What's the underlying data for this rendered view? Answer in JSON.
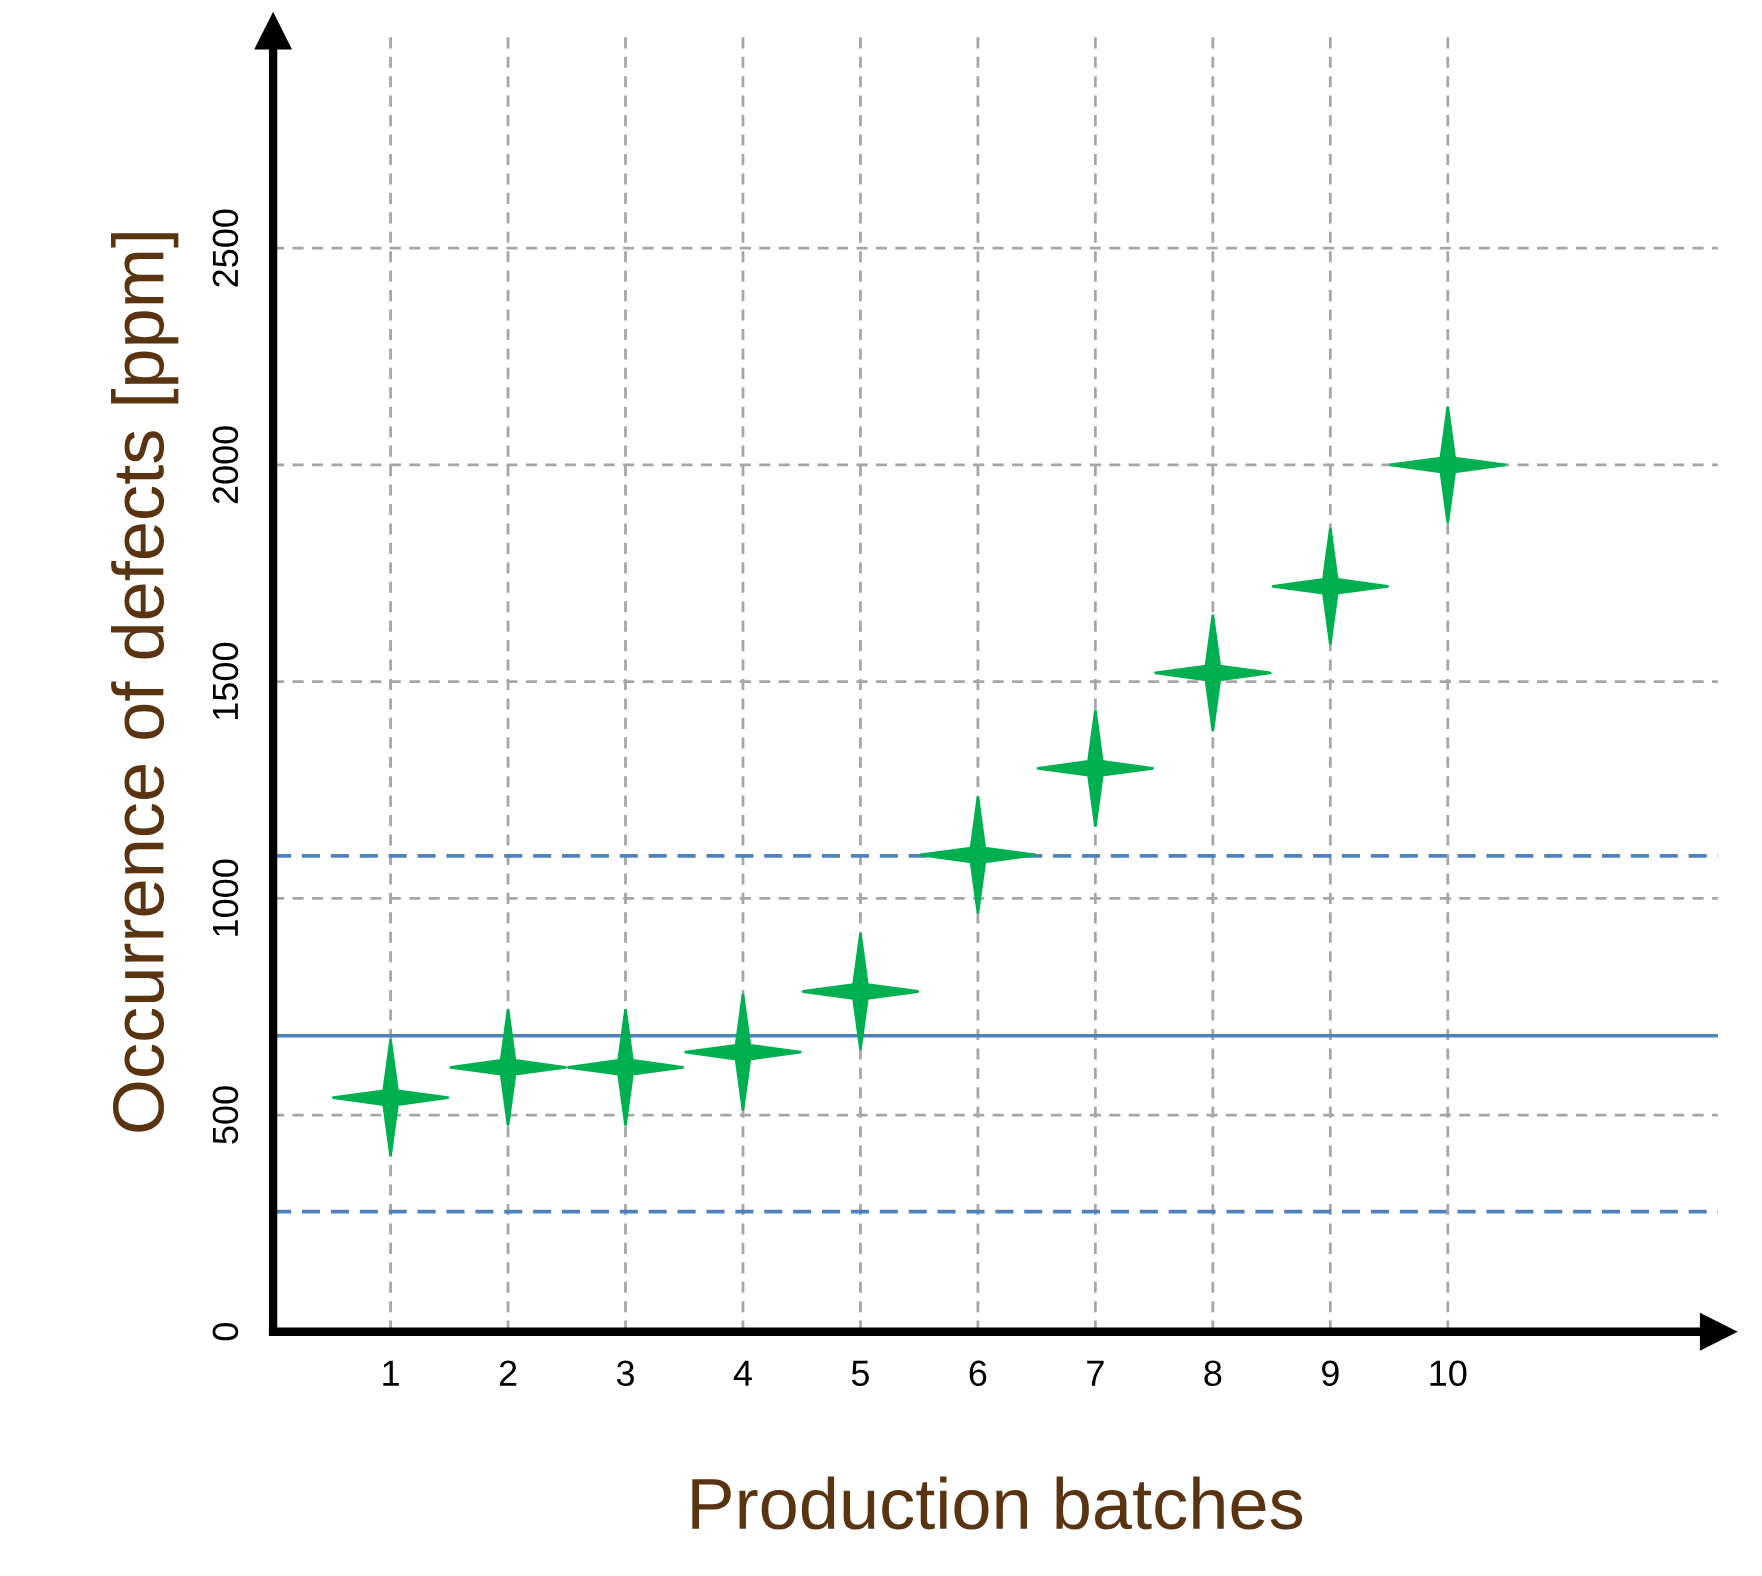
{
  "chart_data": {
    "type": "scatter",
    "xlabel": "Production batches",
    "ylabel": "Occurrence of defects [ppm]",
    "categories": [
      "1",
      "2",
      "3",
      "4",
      "5",
      "6",
      "7",
      "8",
      "9",
      "10"
    ],
    "series": [
      {
        "color": "#00b050",
        "values": [
          540,
          610,
          610,
          645,
          785,
          1100,
          1300,
          1520,
          1720,
          2000
        ]
      }
    ],
    "marker": "star",
    "ylim": [
      0,
      3000
    ],
    "yticks": [
      0,
      500,
      1000,
      1500,
      2000,
      2500
    ],
    "grid": true,
    "legend": false,
    "ref_lines": [
      {
        "axis": "y",
        "value": 683,
        "color": "#4f81bd",
        "line_style": "solid"
      },
      {
        "axis": "y",
        "value": 1098,
        "color": "#4f81bd",
        "line_style": "dashed"
      },
      {
        "axis": "y",
        "value": 277,
        "color": "#4f81bd",
        "line_style": "dashed"
      }
    ]
  }
}
